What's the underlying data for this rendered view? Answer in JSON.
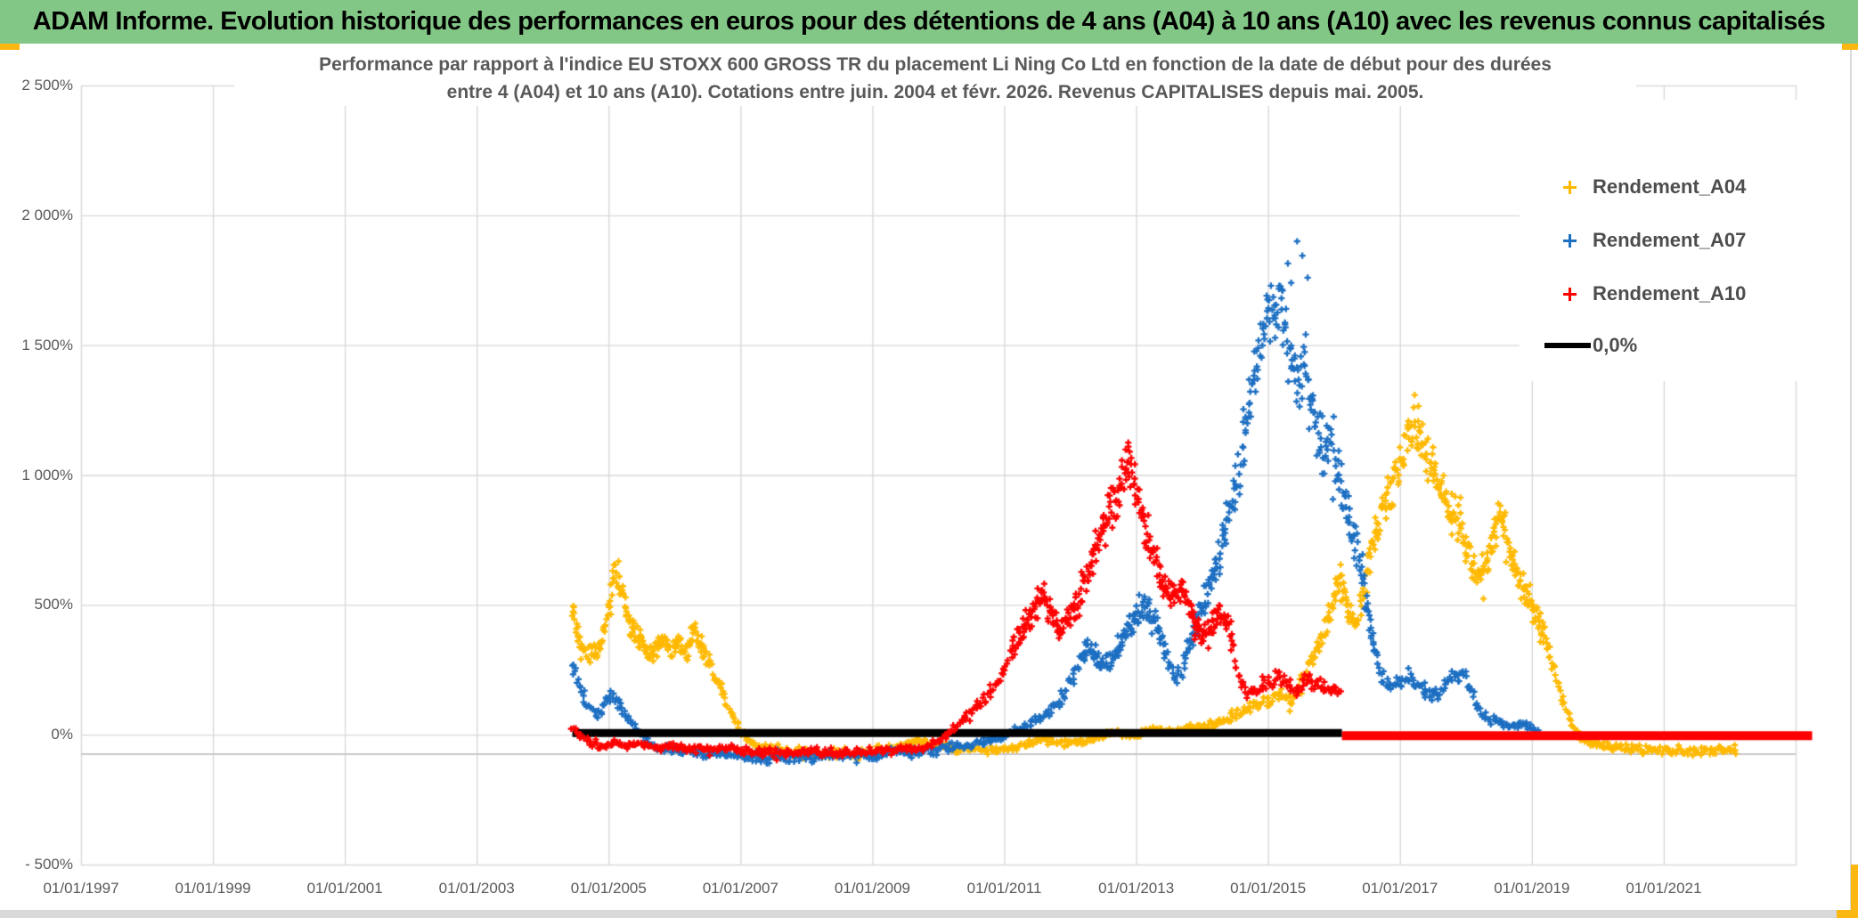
{
  "header": {
    "title": "ADAM Informe. Evolution historique des performances en euros pour des détentions de 4 ans (A04) à 10 ans (A10) avec les revenus connus capitalisés"
  },
  "colors": {
    "header_green": "#82C785",
    "selection_orange": "#FCB811",
    "gridline_grey": "#D9D9D9",
    "axisline_grey": "#C8C8C8",
    "text_grey": "#595959",
    "series_gold": "#FFB900",
    "series_blue": "#1D6FC2",
    "series_red": "#FF0000",
    "zero_line_black": "#000000"
  },
  "chart_data": {
    "type": "scatter",
    "title_line1": "Performance par rapport à l'indice EU STOXX 600 GROSS TR  du placement Li Ning Co Ltd en fonction de la date de début pour des durées",
    "title_line2": "entre 4 (A04) et 10 ans (A10). Cotations entre juin. 2004 et févr. 2026. Revenus CAPITALISES depuis mai. 2005.",
    "x_axis": {
      "min_year": 1997,
      "max_year": 2023,
      "tick_interval_years": 2,
      "tick_labels": [
        "01/01/1997",
        "01/01/1999",
        "01/01/2001",
        "01/01/2003",
        "01/01/2005",
        "01/01/2007",
        "01/01/2009",
        "01/01/2011",
        "01/01/2013",
        "01/01/2015",
        "01/01/2017",
        "01/01/2019",
        "01/01/2021"
      ]
    },
    "y_axis": {
      "min_pct": -500,
      "max_pct": 2500,
      "tick_interval_pct": 500,
      "tick_labels": [
        "2 500%",
        "2 000%",
        "1 500%",
        "1 000%",
        "500%",
        "0%",
        "- 500%"
      ]
    },
    "legend_position": "top-right-inside",
    "grid": true,
    "series": [
      {
        "name": "Rendement_A04",
        "color": "#FFB900",
        "marker": "plus",
        "n_points": 920,
        "spread": {
          "base": 14,
          "slope": 0.1,
          "cap": 110
        },
        "keypoints": [
          [
            2004.45,
            490
          ],
          [
            2004.52,
            420
          ],
          [
            2004.6,
            310
          ],
          [
            2004.7,
            300
          ],
          [
            2004.8,
            330
          ],
          [
            2004.9,
            360
          ],
          [
            2005.0,
            480
          ],
          [
            2005.1,
            650
          ],
          [
            2005.18,
            570
          ],
          [
            2005.28,
            440
          ],
          [
            2005.4,
            400
          ],
          [
            2005.5,
            355
          ],
          [
            2005.62,
            310
          ],
          [
            2005.75,
            340
          ],
          [
            2005.88,
            360
          ],
          [
            2005.95,
            300
          ],
          [
            2006.05,
            355
          ],
          [
            2006.18,
            310
          ],
          [
            2006.3,
            415
          ],
          [
            2006.42,
            330
          ],
          [
            2006.52,
            290
          ],
          [
            2006.62,
            215
          ],
          [
            2006.75,
            150
          ],
          [
            2006.88,
            70
          ],
          [
            2007.0,
            15
          ],
          [
            2007.15,
            -35
          ],
          [
            2007.4,
            -55
          ],
          [
            2007.8,
            -70
          ],
          [
            2008.3,
            -75
          ],
          [
            2008.8,
            -70
          ],
          [
            2009.2,
            -55
          ],
          [
            2009.5,
            -35
          ],
          [
            2009.7,
            -20
          ],
          [
            2009.9,
            -40
          ],
          [
            2010.3,
            -55
          ],
          [
            2010.8,
            -60
          ],
          [
            2011.1,
            -50
          ],
          [
            2011.35,
            -35
          ],
          [
            2011.6,
            -15
          ],
          [
            2011.8,
            -35
          ],
          [
            2012.1,
            -30
          ],
          [
            2012.4,
            -10
          ],
          [
            2012.7,
            5
          ],
          [
            2012.9,
            -5
          ],
          [
            2013.1,
            10
          ],
          [
            2013.35,
            25
          ],
          [
            2013.6,
            10
          ],
          [
            2013.8,
            30
          ],
          [
            2014.0,
            25
          ],
          [
            2014.3,
            50
          ],
          [
            2014.6,
            90
          ],
          [
            2014.85,
            115
          ],
          [
            2015.05,
            140
          ],
          [
            2015.2,
            160
          ],
          [
            2015.35,
            130
          ],
          [
            2015.55,
            230
          ],
          [
            2015.75,
            340
          ],
          [
            2015.95,
            480
          ],
          [
            2016.08,
            600
          ],
          [
            2016.2,
            500
          ],
          [
            2016.32,
            430
          ],
          [
            2016.45,
            540
          ],
          [
            2016.6,
            760
          ],
          [
            2016.75,
            880
          ],
          [
            2016.9,
            980
          ],
          [
            2017.05,
            1080
          ],
          [
            2017.2,
            1200
          ],
          [
            2017.32,
            1150
          ],
          [
            2017.45,
            1050
          ],
          [
            2017.6,
            940
          ],
          [
            2017.75,
            870
          ],
          [
            2017.9,
            790
          ],
          [
            2018.05,
            690
          ],
          [
            2018.2,
            620
          ],
          [
            2018.35,
            680
          ],
          [
            2018.48,
            860
          ],
          [
            2018.6,
            760
          ],
          [
            2018.75,
            640
          ],
          [
            2018.9,
            540
          ],
          [
            2019.05,
            470
          ],
          [
            2019.2,
            370
          ],
          [
            2019.35,
            240
          ],
          [
            2019.5,
            110
          ],
          [
            2019.65,
            20
          ],
          [
            2019.8,
            -25
          ],
          [
            2020.1,
            -45
          ],
          [
            2020.6,
            -55
          ],
          [
            2021.2,
            -60
          ],
          [
            2021.7,
            -65
          ],
          [
            2022.1,
            -60
          ]
        ],
        "outliers": [
          [
            2017.28,
            1265
          ],
          [
            2016.1,
            655
          ]
        ]
      },
      {
        "name": "Rendement_A07",
        "color": "#1D6FC2",
        "marker": "plus",
        "n_points": 765,
        "spread": {
          "base": 14,
          "slope": 0.11,
          "cap": 145
        },
        "keypoints": [
          [
            2004.45,
            280
          ],
          [
            2004.55,
            205
          ],
          [
            2004.68,
            120
          ],
          [
            2004.82,
            75
          ],
          [
            2004.95,
            125
          ],
          [
            2005.08,
            155
          ],
          [
            2005.22,
            95
          ],
          [
            2005.38,
            30
          ],
          [
            2005.55,
            -15
          ],
          [
            2005.75,
            -55
          ],
          [
            2006.0,
            -55
          ],
          [
            2006.3,
            -70
          ],
          [
            2006.7,
            -75
          ],
          [
            2007.1,
            -85
          ],
          [
            2007.6,
            -90
          ],
          [
            2008.1,
            -85
          ],
          [
            2008.6,
            -80
          ],
          [
            2009.1,
            -75
          ],
          [
            2009.35,
            -60
          ],
          [
            2009.6,
            -70
          ],
          [
            2009.9,
            -60
          ],
          [
            2010.3,
            -45
          ],
          [
            2010.7,
            -25
          ],
          [
            2011.0,
            -5
          ],
          [
            2011.3,
            30
          ],
          [
            2011.6,
            80
          ],
          [
            2011.85,
            130
          ],
          [
            2012.05,
            225
          ],
          [
            2012.25,
            330
          ],
          [
            2012.4,
            300
          ],
          [
            2012.55,
            265
          ],
          [
            2012.7,
            320
          ],
          [
            2012.85,
            390
          ],
          [
            2013.0,
            450
          ],
          [
            2013.15,
            495
          ],
          [
            2013.3,
            430
          ],
          [
            2013.45,
            310
          ],
          [
            2013.58,
            200
          ],
          [
            2013.72,
            270
          ],
          [
            2013.88,
            410
          ],
          [
            2014.02,
            510
          ],
          [
            2014.18,
            630
          ],
          [
            2014.32,
            770
          ],
          [
            2014.45,
            890
          ],
          [
            2014.6,
            1080
          ],
          [
            2014.75,
            1320
          ],
          [
            2014.9,
            1520
          ],
          [
            2015.05,
            1630
          ],
          [
            2015.18,
            1690
          ],
          [
            2015.32,
            1520
          ],
          [
            2015.45,
            1340
          ],
          [
            2015.55,
            1440
          ],
          [
            2015.68,
            1230
          ],
          [
            2015.82,
            1060
          ],
          [
            2015.95,
            1140
          ],
          [
            2016.1,
            960
          ],
          [
            2016.25,
            820
          ],
          [
            2016.4,
            660
          ],
          [
            2016.55,
            420
          ],
          [
            2016.7,
            240
          ],
          [
            2016.85,
            180
          ],
          [
            2017.0,
            195
          ],
          [
            2017.15,
            225
          ],
          [
            2017.3,
            185
          ],
          [
            2017.45,
            150
          ],
          [
            2017.6,
            158
          ],
          [
            2017.78,
            215
          ],
          [
            2017.95,
            245
          ],
          [
            2018.1,
            150
          ],
          [
            2018.25,
            85
          ],
          [
            2018.45,
            50
          ],
          [
            2018.65,
            32
          ],
          [
            2018.85,
            42
          ],
          [
            2019.1,
            12
          ]
        ],
        "outliers": [
          [
            2015.3,
            1815
          ],
          [
            2015.44,
            1900
          ],
          [
            2015.52,
            1845
          ],
          [
            2015.6,
            1760
          ],
          [
            2015.35,
            1740
          ]
        ]
      },
      {
        "name": "Rendement_A10",
        "color": "#FF0000",
        "marker": "plus",
        "n_points": 610,
        "spread": {
          "base": 12,
          "slope": 0.1,
          "cap": 100
        },
        "keypoints": [
          [
            2004.45,
            30
          ],
          [
            2004.55,
            0
          ],
          [
            2004.7,
            -30
          ],
          [
            2004.9,
            -48
          ],
          [
            2005.1,
            -22
          ],
          [
            2005.3,
            -45
          ],
          [
            2005.5,
            -32
          ],
          [
            2005.7,
            -52
          ],
          [
            2005.95,
            -42
          ],
          [
            2006.25,
            -55
          ],
          [
            2006.55,
            -60
          ],
          [
            2006.85,
            -55
          ],
          [
            2007.15,
            -65
          ],
          [
            2007.6,
            -70
          ],
          [
            2008.1,
            -65
          ],
          [
            2008.5,
            -70
          ],
          [
            2008.9,
            -65
          ],
          [
            2009.25,
            -58
          ],
          [
            2009.55,
            -52
          ],
          [
            2009.85,
            -42
          ],
          [
            2010.05,
            -18
          ],
          [
            2010.25,
            25
          ],
          [
            2010.45,
            75
          ],
          [
            2010.65,
            125
          ],
          [
            2010.85,
            175
          ],
          [
            2011.0,
            255
          ],
          [
            2011.15,
            345
          ],
          [
            2011.3,
            415
          ],
          [
            2011.45,
            475
          ],
          [
            2011.58,
            550
          ],
          [
            2011.7,
            475
          ],
          [
            2011.85,
            405
          ],
          [
            2012.0,
            450
          ],
          [
            2012.15,
            520
          ],
          [
            2012.3,
            640
          ],
          [
            2012.45,
            770
          ],
          [
            2012.6,
            860
          ],
          [
            2012.75,
            945
          ],
          [
            2012.87,
            1060
          ],
          [
            2012.97,
            970
          ],
          [
            2013.1,
            840
          ],
          [
            2013.25,
            700
          ],
          [
            2013.4,
            600
          ],
          [
            2013.55,
            525
          ],
          [
            2013.7,
            565
          ],
          [
            2013.85,
            475
          ],
          [
            2013.97,
            380
          ],
          [
            2014.1,
            400
          ],
          [
            2014.25,
            465
          ],
          [
            2014.4,
            415
          ],
          [
            2014.55,
            225
          ],
          [
            2014.7,
            152
          ],
          [
            2014.85,
            172
          ],
          [
            2015.0,
            200
          ],
          [
            2015.15,
            228
          ],
          [
            2015.3,
            190
          ],
          [
            2015.45,
            172
          ],
          [
            2015.6,
            218
          ],
          [
            2015.75,
            198
          ],
          [
            2015.9,
            172
          ],
          [
            2016.1,
            162
          ]
        ],
        "outliers": [
          [
            2012.88,
            1125
          ],
          [
            2012.9,
            1090
          ]
        ]
      }
    ],
    "zero_line": {
      "label": "0,0%",
      "color": "#000000",
      "value": 0,
      "start_year": 2004.45,
      "end_year": 2016.12
    },
    "red_zero_line": {
      "color": "#FF0000",
      "value": 0,
      "start_year": 2016.12,
      "end_year": 2023.25
    }
  }
}
